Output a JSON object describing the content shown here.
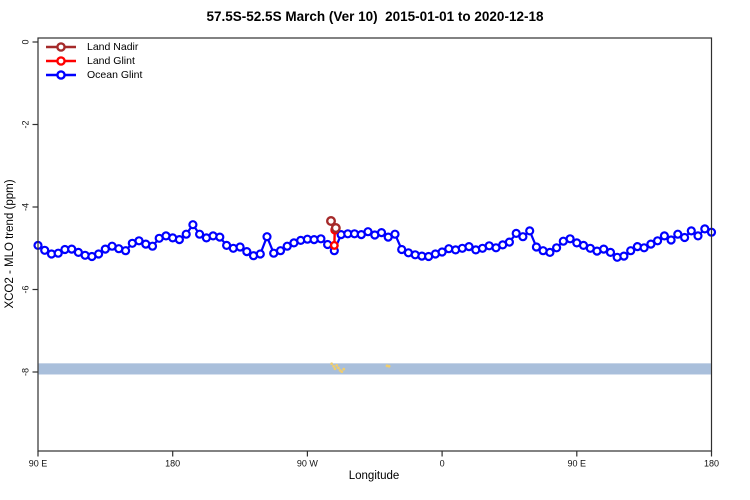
{
  "chart_data": {
    "type": "line",
    "title": "57.5S-52.5S March (Ver 10)  2015-01-01 to 2020-12-18",
    "xlabel": "Longitude",
    "ylabel": "XCO2 - MLO trend (ppm)",
    "xlim": [
      90,
      540
    ],
    "ylim": [
      0.1,
      -9.9
    ],
    "x_ticks": [
      {
        "lon": 90,
        "label": "90 E"
      },
      {
        "lon": 180,
        "label": "180"
      },
      {
        "lon": 270,
        "label": "90 W"
      },
      {
        "lon": 360,
        "label": "0"
      },
      {
        "lon": 450,
        "label": "90 E"
      },
      {
        "lon": 540,
        "label": "180"
      }
    ],
    "y_ticks": [
      {
        "v": 0,
        "label": "0"
      },
      {
        "v": -2,
        "label": "-2"
      },
      {
        "v": -4,
        "label": "-4"
      },
      {
        "v": -6,
        "label": "-6"
      },
      {
        "v": -8,
        "label": "-8"
      }
    ],
    "legend": [
      {
        "key": "land_nadir",
        "label": "Land Nadir",
        "color": "#A52A2A"
      },
      {
        "key": "land_glint",
        "label": "Land Glint",
        "color": "#FF0000"
      },
      {
        "key": "ocean_glint",
        "label": "Ocean Glint",
        "color": "#0000FF"
      }
    ],
    "band": {
      "y_from": -7.79,
      "y_to": -8.06,
      "color": "#A9BFDB"
    },
    "specks": {
      "color": "#EFCD6F",
      "points": [
        [
          286.2,
          -7.8
        ],
        [
          287.5,
          -7.86
        ],
        [
          288.4,
          -7.92
        ],
        [
          289.6,
          -7.84
        ],
        [
          290.7,
          -7.9
        ],
        [
          291.8,
          -7.96
        ],
        [
          293.0,
          -7.99
        ],
        [
          294.3,
          -7.93
        ],
        [
          323.2,
          -7.85
        ],
        [
          324.6,
          -7.86
        ]
      ]
    },
    "series": [
      {
        "name": "ocean_glint",
        "color": "#0000FF",
        "marker_r": 3.5,
        "line_w": 2.2,
        "lon_start": 90,
        "lon_step": 4.5,
        "values": [
          -4.93,
          -5.05,
          -5.14,
          -5.12,
          -5.03,
          -5.02,
          -5.1,
          -5.17,
          -5.2,
          -5.14,
          -5.02,
          -4.95,
          -5.01,
          -5.06,
          -4.88,
          -4.82,
          -4.9,
          -4.95,
          -4.76,
          -4.7,
          -4.75,
          -4.79,
          -4.66,
          -4.43,
          -4.66,
          -4.75,
          -4.7,
          -4.73,
          -4.93,
          -5.0,
          -4.97,
          -5.08,
          -5.18,
          -5.14,
          -4.72,
          -5.12,
          -5.06,
          -4.95,
          -4.87,
          -4.81,
          -4.78,
          -4.79,
          -4.77,
          -4.91,
          -5.06,
          -4.67,
          -4.65,
          -4.65,
          -4.67,
          -4.6,
          -4.68,
          -4.62,
          -4.73,
          -4.66,
          -5.03,
          -5.11,
          -5.16,
          -5.19,
          -5.2,
          -5.14,
          -5.09,
          -5.01,
          -5.04,
          -5.0,
          -4.96,
          -5.04,
          -5.0,
          -4.94,
          -4.99,
          -4.92,
          -4.85,
          -4.64,
          -4.72,
          -4.58,
          -4.97,
          -5.06,
          -5.1,
          -4.99,
          -4.83,
          -4.77,
          -4.87,
          -4.93,
          -5.0,
          -5.07,
          -5.02,
          -5.1,
          -5.22,
          -5.19,
          -5.06,
          -4.96,
          -4.99,
          -4.9,
          -4.82,
          -4.7,
          -4.8,
          -4.66,
          -4.74,
          -4.58,
          -4.7,
          -4.53,
          -4.61
        ]
      },
      {
        "name": "land_glint",
        "color": "#FF0000",
        "marker_r": 3.3,
        "line_w": 2.4,
        "points": [
          [
            288.3,
            -4.56
          ],
          [
            288.0,
            -4.93
          ]
        ]
      },
      {
        "name": "land_nadir",
        "color": "#A52A2A",
        "marker_r": 3.8,
        "line_w": 2.4,
        "points": [
          [
            285.8,
            -4.34
          ],
          [
            289.0,
            -4.51
          ]
        ]
      }
    ]
  }
}
